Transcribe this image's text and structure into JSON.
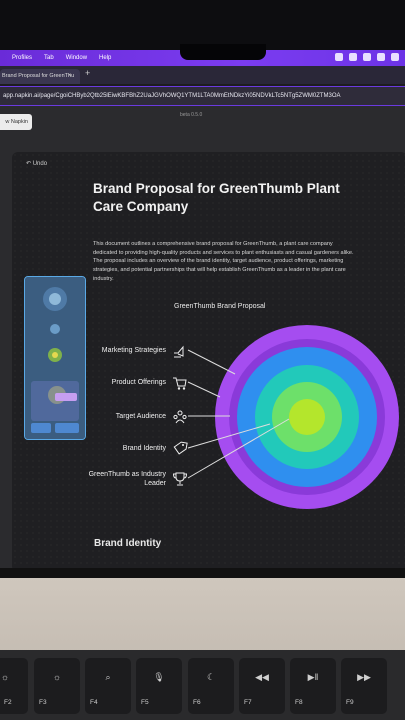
{
  "menubar": {
    "items": [
      "Profiles",
      "Tab",
      "Window",
      "Help"
    ]
  },
  "browser": {
    "tab_title": "Brand Proposal for GreenThu",
    "tab_close": "×",
    "new_tab": "+",
    "url": "app.napkin.ai/page/CgoiCHByb2Qtb25lEiwKBFBhZ2UaJGVhOWQ1YTM1LTA0MmEtNDkzYi05NDVkLTc5NTg5ZWM0ZTM3OA"
  },
  "app": {
    "new_button": "w Napkin",
    "beta": "beta 0.5.0",
    "undo": "Undo",
    "title": "Brand Proposal for GreenThumb Plant Care Company",
    "description": "This document outlines a comprehensive brand proposal for GreenThumb, a plant care company dedicated to providing high-quality products and services to plant enthusiasts and casual gardeners alike. The proposal includes an overview of the brand identity, target audience, product offerings, marketing strategies, and potential partnerships that will help establish GreenThumb as a leader in the plant care industry.",
    "diagram_title": "GreenThumb Brand Proposal",
    "diagram_items": [
      {
        "label": "Marketing Strategies",
        "icon": "megaphone-hand-icon"
      },
      {
        "label": "Product Offerings",
        "icon": "shopping-cart-icon"
      },
      {
        "label": "Target Audience",
        "icon": "people-group-icon"
      },
      {
        "label": "Brand Identity",
        "icon": "tag-icon"
      },
      {
        "label": "GreenThumb as Industry Leader",
        "icon": "trophy-icon"
      }
    ],
    "ring_colors": [
      "#a54df0",
      "#2f8fef",
      "#22c9ba",
      "#6de06a",
      "#b4e62c"
    ],
    "section_heading": "Brand Identity"
  },
  "keyboard": {
    "keys": [
      {
        "label": "F2",
        "icon": "☼"
      },
      {
        "label": "F3",
        "icon": "☼"
      },
      {
        "label": "F4",
        "icon": "⌕"
      },
      {
        "label": "F5",
        "icon": "🎙"
      },
      {
        "label": "F6",
        "icon": "☾"
      },
      {
        "label": "F7",
        "icon": "◀◀"
      },
      {
        "label": "F8",
        "icon": "▶‖"
      },
      {
        "label": "F9",
        "icon": "▶▶"
      }
    ]
  }
}
